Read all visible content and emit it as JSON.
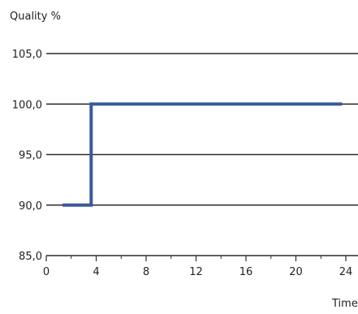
{
  "chart_data": {
    "type": "line",
    "title": "",
    "ylabel": "Quality %",
    "xlabel": "Time",
    "xlim": [
      0,
      24
    ],
    "ylim": [
      85,
      105
    ],
    "x_ticks": [
      0,
      4,
      8,
      12,
      16,
      20,
      24
    ],
    "x_tick_labels": [
      "0",
      "4",
      "8",
      "12",
      "16",
      "20",
      "24"
    ],
    "y_ticks": [
      85,
      90,
      95,
      100,
      105
    ],
    "y_tick_labels": [
      "85,0",
      "90,0",
      "95,0",
      "100,0",
      "105,0"
    ],
    "grid": "horizontal",
    "series": [
      {
        "color": "#3a5a9a",
        "x": [
          1.3,
          3.6,
          3.6,
          23.7
        ],
        "y": [
          90,
          90,
          100,
          100
        ]
      }
    ]
  }
}
